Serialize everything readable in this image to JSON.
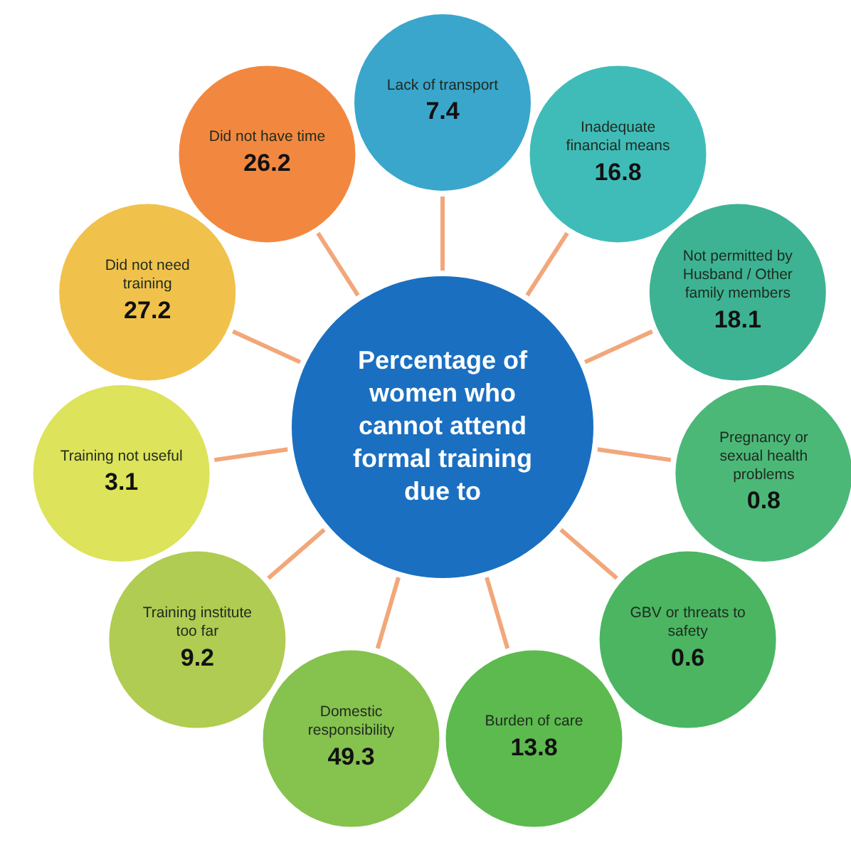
{
  "chart_data": {
    "type": "other",
    "title": "Percentage of women who cannot attend formal training due to",
    "categories": [
      "Lack of transport",
      "Inadequate financial means",
      "Not permitted by Husband / Other family members",
      "Pregnancy or sexual health problems",
      "GBV or threats to safety",
      "Burden of care",
      "Domestic responsibility",
      "Training institute too far",
      "Training not useful",
      "Did not need training",
      "Did not have time"
    ],
    "values": [
      7.4,
      16.8,
      18.1,
      0.8,
      0.6,
      13.8,
      49.3,
      9.2,
      3.1,
      27.2,
      26.2
    ],
    "colors": [
      "#3aa6cc",
      "#40bcb8",
      "#3db393",
      "#4cb878",
      "#4bb562",
      "#5cba4e",
      "#86c24e",
      "#b0cc52",
      "#dde35a",
      "#f0c24c",
      "#f2883f"
    ],
    "data_labels": true
  }
}
